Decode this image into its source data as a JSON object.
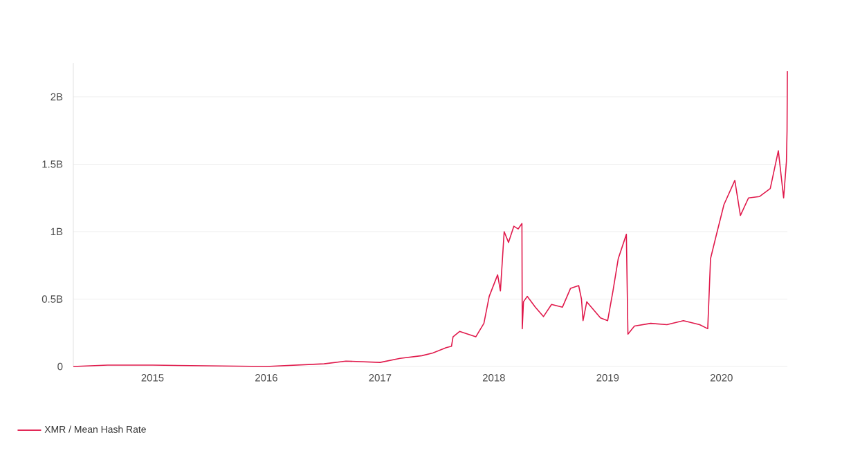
{
  "chart_data": {
    "type": "line",
    "x": [
      "2014-04-22",
      "2014-08-10",
      "2015-01-01",
      "2016-01-01",
      "2016-07-05",
      "2016-09-13",
      "2017-01-01",
      "2017-03-06",
      "2017-05-15",
      "2017-06-19",
      "2017-08-01",
      "2017-08-18",
      "2017-08-23",
      "2017-09-13",
      "2017-11-04",
      "2017-11-30",
      "2017-12-17",
      "2018-01-13",
      "2018-01-22",
      "2018-02-03",
      "2018-02-17",
      "2018-03-06",
      "2018-03-20",
      "2018-04-01",
      "2018-04-02",
      "2018-04-06",
      "2018-04-18",
      "2018-05-14",
      "2018-06-09",
      "2018-07-05",
      "2018-08-09",
      "2018-09-04",
      "2018-09-30",
      "2018-10-09",
      "2018-10-14",
      "2018-10-26",
      "2018-12-09",
      "2019-01-01",
      "2019-01-18",
      "2019-02-04",
      "2019-03-02",
      "2019-03-07",
      "2019-03-28",
      "2019-05-19",
      "2019-07-10",
      "2019-09-01",
      "2019-10-23",
      "2019-11-18",
      "2019-11-27",
      "2019-12-14",
      "2020-01-09",
      "2020-02-13",
      "2020-03-02",
      "2020-03-28",
      "2020-05-02",
      "2020-06-06",
      "2020-07-02",
      "2020-07-19",
      "2020-07-28",
      "2020-07-30",
      "2020-07-31"
    ],
    "series": [
      {
        "name": "XMR / Mean Hash Rate",
        "color": "#e0194b",
        "values": [
          0,
          0.01,
          0.01,
          0,
          0.02,
          0.04,
          0.03,
          0.06,
          0.08,
          0.1,
          0.14,
          0.15,
          0.22,
          0.26,
          0.22,
          0.32,
          0.52,
          0.68,
          0.56,
          1.0,
          0.92,
          1.04,
          1.02,
          1.06,
          0.28,
          0.48,
          0.52,
          0.44,
          0.37,
          0.46,
          0.44,
          0.58,
          0.6,
          0.5,
          0.34,
          0.48,
          0.36,
          0.34,
          0.56,
          0.8,
          0.98,
          0.24,
          0.3,
          0.32,
          0.31,
          0.34,
          0.31,
          0.28,
          0.8,
          0.96,
          1.2,
          1.38,
          1.12,
          1.25,
          1.26,
          1.32,
          1.6,
          1.25,
          1.52,
          1.75,
          2.19
        ]
      }
    ],
    "xlim": [
      "2014-04-22",
      "2020-07-31"
    ],
    "xticks": [
      {
        "value": "2015",
        "label": "2015"
      },
      {
        "value": "2016",
        "label": "2016"
      },
      {
        "value": "2017",
        "label": "2017"
      },
      {
        "value": "2018",
        "label": "2018"
      },
      {
        "value": "2019",
        "label": "2019"
      },
      {
        "value": "2020",
        "label": "2020"
      }
    ],
    "ylim": [
      0,
      2.25
    ],
    "yticks": [
      0,
      {
        "value": 0.5,
        "label": "0.5B"
      },
      {
        "value": 1,
        "label": "1B"
      },
      {
        "value": 1.5,
        "label": "1.5B"
      },
      {
        "value": 2,
        "label": "2B"
      }
    ],
    "grid": "y",
    "legend": "bottom left",
    "marker": "none",
    "line_style": "solid"
  }
}
